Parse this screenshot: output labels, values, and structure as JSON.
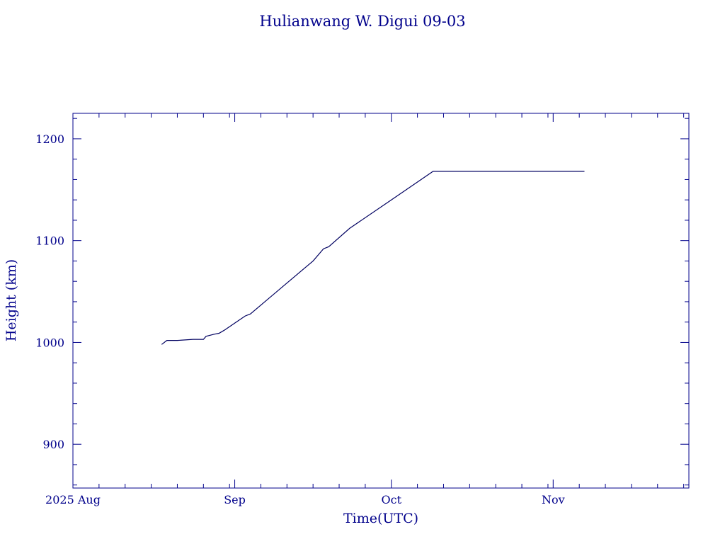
{
  "chart_data": {
    "type": "line",
    "title": "Hulianwang W. Digui 09-03",
    "xlabel": "Time(UTC)",
    "ylabel": "Height (km)",
    "x_unit": "date (UTC)",
    "xlim": [
      "2025-08-01",
      "2025-11-27"
    ],
    "ylim": [
      857,
      1225
    ],
    "x_ticks": [
      {
        "date": "2025-08-01",
        "label": "2025 Aug"
      },
      {
        "date": "2025-09-01",
        "label": "Sep"
      },
      {
        "date": "2025-10-01",
        "label": "Oct"
      },
      {
        "date": "2025-11-01",
        "label": "Nov"
      }
    ],
    "y_ticks": [
      900,
      1000,
      1100,
      1200
    ],
    "grid": false,
    "colors": {
      "foreground": "#00008b",
      "line": "#000060",
      "background": "#ffffff"
    },
    "series": [
      {
        "points": [
          {
            "x": "2025-08-18",
            "y": 998
          },
          {
            "x": "2025-08-19",
            "y": 1002
          },
          {
            "x": "2025-08-21",
            "y": 1002
          },
          {
            "x": "2025-08-24",
            "y": 1003
          },
          {
            "x": "2025-08-26",
            "y": 1003
          },
          {
            "x": "2025-08-26.5",
            "y": 1006
          },
          {
            "x": "2025-08-28",
            "y": 1008
          },
          {
            "x": "2025-08-29",
            "y": 1009
          },
          {
            "x": "2025-08-30",
            "y": 1012
          },
          {
            "x": "2025-09-01",
            "y": 1019
          },
          {
            "x": "2025-09-03",
            "y": 1026
          },
          {
            "x": "2025-09-04",
            "y": 1028
          },
          {
            "x": "2025-09-10",
            "y": 1054
          },
          {
            "x": "2025-09-16",
            "y": 1080
          },
          {
            "x": "2025-09-18",
            "y": 1092
          },
          {
            "x": "2025-09-19",
            "y": 1094
          },
          {
            "x": "2025-09-23",
            "y": 1112
          },
          {
            "x": "2025-10-01",
            "y": 1140
          },
          {
            "x": "2025-10-09",
            "y": 1168
          },
          {
            "x": "2025-11-07",
            "y": 1168
          }
        ]
      }
    ]
  }
}
